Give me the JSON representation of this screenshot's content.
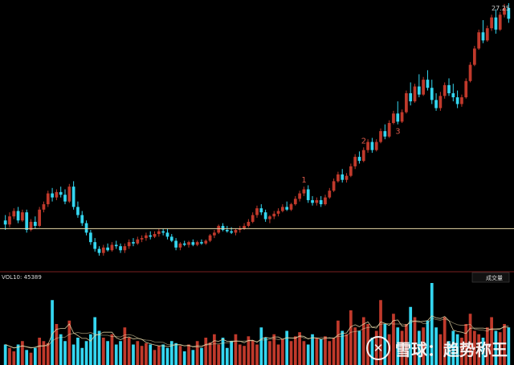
{
  "colors": {
    "up": "#c0392b",
    "down": "#34d6f0",
    "support_line": "#e8d8a8",
    "ma_line": "#e8d8a8",
    "separator": "#7a1f1f",
    "annotation": "#d8584a"
  },
  "price_label": "27.25",
  "volume_header": "VOL10: 45389",
  "volume_button": "成交量",
  "annotations": [
    {
      "label": "1",
      "t": 70
    },
    {
      "label": "2",
      "t": 84
    },
    {
      "label": "3",
      "t": 92
    }
  ],
  "watermark": {
    "icon": "snowball-logo-icon",
    "text": "雪球：趋势称王"
  },
  "chart_data": {
    "type": "candlestick",
    "title": "",
    "support_level": 10.6,
    "candles": [
      {
        "o": 11.2,
        "h": 11.6,
        "l": 10.5,
        "c": 10.9
      },
      {
        "o": 10.9,
        "h": 11.8,
        "l": 10.7,
        "c": 11.5
      },
      {
        "o": 11.5,
        "h": 12.1,
        "l": 11.3,
        "c": 11.9
      },
      {
        "o": 11.9,
        "h": 12.2,
        "l": 11.0,
        "c": 11.2
      },
      {
        "o": 11.2,
        "h": 12.0,
        "l": 11.1,
        "c": 11.8
      },
      {
        "o": 11.8,
        "h": 12.0,
        "l": 10.3,
        "c": 10.5
      },
      {
        "o": 10.5,
        "h": 11.3,
        "l": 10.4,
        "c": 11.1
      },
      {
        "o": 11.1,
        "h": 11.5,
        "l": 10.6,
        "c": 10.8
      },
      {
        "o": 10.8,
        "h": 12.2,
        "l": 10.7,
        "c": 12.0
      },
      {
        "o": 12.0,
        "h": 12.6,
        "l": 11.8,
        "c": 12.4
      },
      {
        "o": 12.4,
        "h": 13.4,
        "l": 12.2,
        "c": 13.2
      },
      {
        "o": 13.2,
        "h": 13.6,
        "l": 12.6,
        "c": 12.9
      },
      {
        "o": 12.9,
        "h": 13.5,
        "l": 12.7,
        "c": 13.3
      },
      {
        "o": 13.3,
        "h": 13.7,
        "l": 12.9,
        "c": 13.1
      },
      {
        "o": 13.1,
        "h": 13.5,
        "l": 12.4,
        "c": 12.6
      },
      {
        "o": 12.6,
        "h": 13.9,
        "l": 12.5,
        "c": 13.7
      },
      {
        "o": 13.7,
        "h": 14.1,
        "l": 12.0,
        "c": 12.2
      },
      {
        "o": 12.2,
        "h": 12.6,
        "l": 11.4,
        "c": 11.6
      },
      {
        "o": 11.6,
        "h": 11.9,
        "l": 10.8,
        "c": 11.0
      },
      {
        "o": 11.0,
        "h": 11.2,
        "l": 10.1,
        "c": 10.3
      },
      {
        "o": 10.3,
        "h": 10.5,
        "l": 9.4,
        "c": 9.6
      },
      {
        "o": 9.6,
        "h": 9.9,
        "l": 8.9,
        "c": 9.1
      },
      {
        "o": 9.1,
        "h": 9.3,
        "l": 8.6,
        "c": 8.8
      },
      {
        "o": 8.8,
        "h": 9.4,
        "l": 8.6,
        "c": 9.2
      },
      {
        "o": 9.2,
        "h": 9.5,
        "l": 8.9,
        "c": 9.0
      },
      {
        "o": 9.0,
        "h": 9.6,
        "l": 8.9,
        "c": 9.4
      },
      {
        "o": 9.4,
        "h": 9.7,
        "l": 9.1,
        "c": 9.3
      },
      {
        "o": 9.3,
        "h": 9.5,
        "l": 8.8,
        "c": 9.0
      },
      {
        "o": 9.0,
        "h": 9.5,
        "l": 8.8,
        "c": 9.3
      },
      {
        "o": 9.3,
        "h": 9.8,
        "l": 9.1,
        "c": 9.6
      },
      {
        "o": 9.6,
        "h": 9.9,
        "l": 9.3,
        "c": 9.5
      },
      {
        "o": 9.5,
        "h": 10.0,
        "l": 9.4,
        "c": 9.8
      },
      {
        "o": 9.8,
        "h": 10.1,
        "l": 9.6,
        "c": 9.9
      },
      {
        "o": 9.9,
        "h": 10.3,
        "l": 9.7,
        "c": 10.1
      },
      {
        "o": 10.1,
        "h": 10.4,
        "l": 9.8,
        "c": 10.0
      },
      {
        "o": 10.0,
        "h": 10.4,
        "l": 9.9,
        "c": 10.2
      },
      {
        "o": 10.2,
        "h": 10.6,
        "l": 10.0,
        "c": 10.4
      },
      {
        "o": 10.4,
        "h": 10.6,
        "l": 10.1,
        "c": 10.3
      },
      {
        "o": 10.3,
        "h": 10.6,
        "l": 9.8,
        "c": 10.0
      },
      {
        "o": 10.0,
        "h": 10.2,
        "l": 9.6,
        "c": 9.7
      },
      {
        "o": 9.7,
        "h": 9.9,
        "l": 9.0,
        "c": 9.2
      },
      {
        "o": 9.2,
        "h": 9.6,
        "l": 9.0,
        "c": 9.5
      },
      {
        "o": 9.5,
        "h": 9.7,
        "l": 9.3,
        "c": 9.4
      },
      {
        "o": 9.4,
        "h": 9.7,
        "l": 9.2,
        "c": 9.6
      },
      {
        "o": 9.6,
        "h": 9.8,
        "l": 9.3,
        "c": 9.4
      },
      {
        "o": 9.4,
        "h": 9.7,
        "l": 9.3,
        "c": 9.6
      },
      {
        "o": 9.6,
        "h": 9.8,
        "l": 9.4,
        "c": 9.5
      },
      {
        "o": 9.5,
        "h": 9.8,
        "l": 9.4,
        "c": 9.7
      },
      {
        "o": 9.7,
        "h": 10.2,
        "l": 9.6,
        "c": 10.1
      },
      {
        "o": 10.1,
        "h": 10.5,
        "l": 9.9,
        "c": 10.3
      },
      {
        "o": 10.3,
        "h": 10.9,
        "l": 10.2,
        "c": 10.8
      },
      {
        "o": 10.8,
        "h": 11.0,
        "l": 10.4,
        "c": 10.5
      },
      {
        "o": 10.5,
        "h": 10.8,
        "l": 10.3,
        "c": 10.4
      },
      {
        "o": 10.4,
        "h": 10.7,
        "l": 10.2,
        "c": 10.3
      },
      {
        "o": 10.3,
        "h": 10.6,
        "l": 10.1,
        "c": 10.5
      },
      {
        "o": 10.5,
        "h": 10.8,
        "l": 10.3,
        "c": 10.6
      },
      {
        "o": 10.6,
        "h": 11.0,
        "l": 10.5,
        "c": 10.8
      },
      {
        "o": 10.8,
        "h": 11.3,
        "l": 10.7,
        "c": 11.1
      },
      {
        "o": 11.1,
        "h": 11.8,
        "l": 11.0,
        "c": 11.6
      },
      {
        "o": 11.6,
        "h": 12.3,
        "l": 11.4,
        "c": 12.1
      },
      {
        "o": 12.1,
        "h": 12.4,
        "l": 11.6,
        "c": 11.8
      },
      {
        "o": 11.8,
        "h": 12.0,
        "l": 11.1,
        "c": 11.3
      },
      {
        "o": 11.3,
        "h": 11.6,
        "l": 11.0,
        "c": 11.5
      },
      {
        "o": 11.5,
        "h": 11.9,
        "l": 11.3,
        "c": 11.7
      },
      {
        "o": 11.7,
        "h": 12.1,
        "l": 11.5,
        "c": 11.9
      },
      {
        "o": 11.9,
        "h": 12.4,
        "l": 11.8,
        "c": 12.2
      },
      {
        "o": 12.2,
        "h": 12.6,
        "l": 11.9,
        "c": 12.0
      },
      {
        "o": 12.0,
        "h": 12.5,
        "l": 11.9,
        "c": 12.4
      },
      {
        "o": 12.4,
        "h": 13.0,
        "l": 12.3,
        "c": 12.8
      },
      {
        "o": 12.8,
        "h": 13.4,
        "l": 12.6,
        "c": 13.2
      },
      {
        "o": 13.2,
        "h": 13.7,
        "l": 13.0,
        "c": 13.5
      },
      {
        "o": 13.5,
        "h": 13.8,
        "l": 12.5,
        "c": 12.7
      },
      {
        "o": 12.7,
        "h": 13.0,
        "l": 12.3,
        "c": 12.5
      },
      {
        "o": 12.5,
        "h": 12.9,
        "l": 12.3,
        "c": 12.7
      },
      {
        "o": 12.7,
        "h": 13.0,
        "l": 12.2,
        "c": 12.4
      },
      {
        "o": 12.4,
        "h": 13.1,
        "l": 12.3,
        "c": 12.9
      },
      {
        "o": 12.9,
        "h": 13.6,
        "l": 12.8,
        "c": 13.4
      },
      {
        "o": 13.4,
        "h": 14.3,
        "l": 13.3,
        "c": 14.1
      },
      {
        "o": 14.1,
        "h": 14.8,
        "l": 14.0,
        "c": 14.6
      },
      {
        "o": 14.6,
        "h": 15.0,
        "l": 14.0,
        "c": 14.2
      },
      {
        "o": 14.2,
        "h": 14.7,
        "l": 14.0,
        "c": 14.5
      },
      {
        "o": 14.5,
        "h": 15.4,
        "l": 14.4,
        "c": 15.2
      },
      {
        "o": 15.2,
        "h": 16.1,
        "l": 15.0,
        "c": 15.9
      },
      {
        "o": 15.9,
        "h": 16.3,
        "l": 15.4,
        "c": 15.6
      },
      {
        "o": 15.6,
        "h": 16.6,
        "l": 15.5,
        "c": 16.4
      },
      {
        "o": 16.4,
        "h": 17.2,
        "l": 16.2,
        "c": 17.0
      },
      {
        "o": 17.0,
        "h": 17.3,
        "l": 16.2,
        "c": 16.4
      },
      {
        "o": 16.4,
        "h": 17.2,
        "l": 16.3,
        "c": 17.0
      },
      {
        "o": 17.0,
        "h": 18.0,
        "l": 16.9,
        "c": 17.8
      },
      {
        "o": 17.8,
        "h": 18.3,
        "l": 17.2,
        "c": 17.4
      },
      {
        "o": 17.4,
        "h": 18.6,
        "l": 17.3,
        "c": 18.4
      },
      {
        "o": 18.4,
        "h": 19.3,
        "l": 18.3,
        "c": 19.1
      },
      {
        "o": 19.1,
        "h": 20.0,
        "l": 18.3,
        "c": 18.5
      },
      {
        "o": 18.5,
        "h": 19.4,
        "l": 18.4,
        "c": 19.2
      },
      {
        "o": 19.2,
        "h": 20.8,
        "l": 19.1,
        "c": 20.6
      },
      {
        "o": 20.6,
        "h": 21.4,
        "l": 19.7,
        "c": 20.0
      },
      {
        "o": 20.0,
        "h": 21.3,
        "l": 19.9,
        "c": 21.1
      },
      {
        "o": 21.1,
        "h": 22.0,
        "l": 20.3,
        "c": 20.5
      },
      {
        "o": 20.5,
        "h": 21.8,
        "l": 20.4,
        "c": 21.6
      },
      {
        "o": 21.6,
        "h": 22.3,
        "l": 20.8,
        "c": 21.0
      },
      {
        "o": 21.0,
        "h": 21.6,
        "l": 19.8,
        "c": 20.1
      },
      {
        "o": 20.1,
        "h": 20.6,
        "l": 19.3,
        "c": 19.5
      },
      {
        "o": 19.5,
        "h": 20.7,
        "l": 19.3,
        "c": 20.4
      },
      {
        "o": 20.4,
        "h": 21.4,
        "l": 20.2,
        "c": 21.2
      },
      {
        "o": 21.2,
        "h": 21.7,
        "l": 20.4,
        "c": 20.6
      },
      {
        "o": 20.6,
        "h": 21.3,
        "l": 20.0,
        "c": 20.3
      },
      {
        "o": 20.3,
        "h": 20.8,
        "l": 19.5,
        "c": 19.8
      },
      {
        "o": 19.8,
        "h": 20.5,
        "l": 19.6,
        "c": 20.3
      },
      {
        "o": 20.3,
        "h": 21.7,
        "l": 20.2,
        "c": 21.5
      },
      {
        "o": 21.5,
        "h": 22.9,
        "l": 21.4,
        "c": 22.7
      },
      {
        "o": 22.7,
        "h": 24.1,
        "l": 22.6,
        "c": 23.9
      },
      {
        "o": 23.9,
        "h": 25.3,
        "l": 23.8,
        "c": 25.1
      },
      {
        "o": 25.1,
        "h": 26.0,
        "l": 24.3,
        "c": 24.5
      },
      {
        "o": 24.5,
        "h": 25.6,
        "l": 24.4,
        "c": 25.4
      },
      {
        "o": 25.4,
        "h": 26.4,
        "l": 25.2,
        "c": 26.2
      },
      {
        "o": 26.2,
        "h": 26.8,
        "l": 25.0,
        "c": 25.3
      },
      {
        "o": 25.3,
        "h": 26.6,
        "l": 25.2,
        "c": 26.4
      },
      {
        "o": 26.4,
        "h": 27.2,
        "l": 26.2,
        "c": 26.9
      },
      {
        "o": 26.9,
        "h": 27.25,
        "l": 25.8,
        "c": 26.1
      }
    ],
    "volume": [
      30,
      25,
      20,
      30,
      35,
      22,
      18,
      25,
      40,
      35,
      32,
      95,
      60,
      45,
      35,
      65,
      30,
      40,
      25,
      35,
      45,
      70,
      50,
      40,
      35,
      45,
      30,
      35,
      55,
      40,
      30,
      35,
      28,
      32,
      30,
      22,
      28,
      30,
      25,
      35,
      32,
      28,
      20,
      30,
      22,
      35,
      25,
      40,
      33,
      45,
      30,
      40,
      25,
      35,
      45,
      30,
      28,
      42,
      36,
      30,
      55,
      40,
      35,
      45,
      30,
      38,
      50,
      35,
      42,
      48,
      35,
      30,
      45,
      40,
      38,
      42,
      35,
      40,
      65,
      50,
      45,
      80,
      55,
      50,
      70,
      60,
      40,
      50,
      95,
      60,
      45,
      75,
      55,
      50,
      60,
      85,
      70,
      50,
      55,
      65,
      120,
      55,
      45,
      70,
      35,
      50,
      45,
      40,
      60,
      75,
      50,
      45,
      40,
      55,
      70,
      50,
      48,
      60,
      55
    ]
  }
}
